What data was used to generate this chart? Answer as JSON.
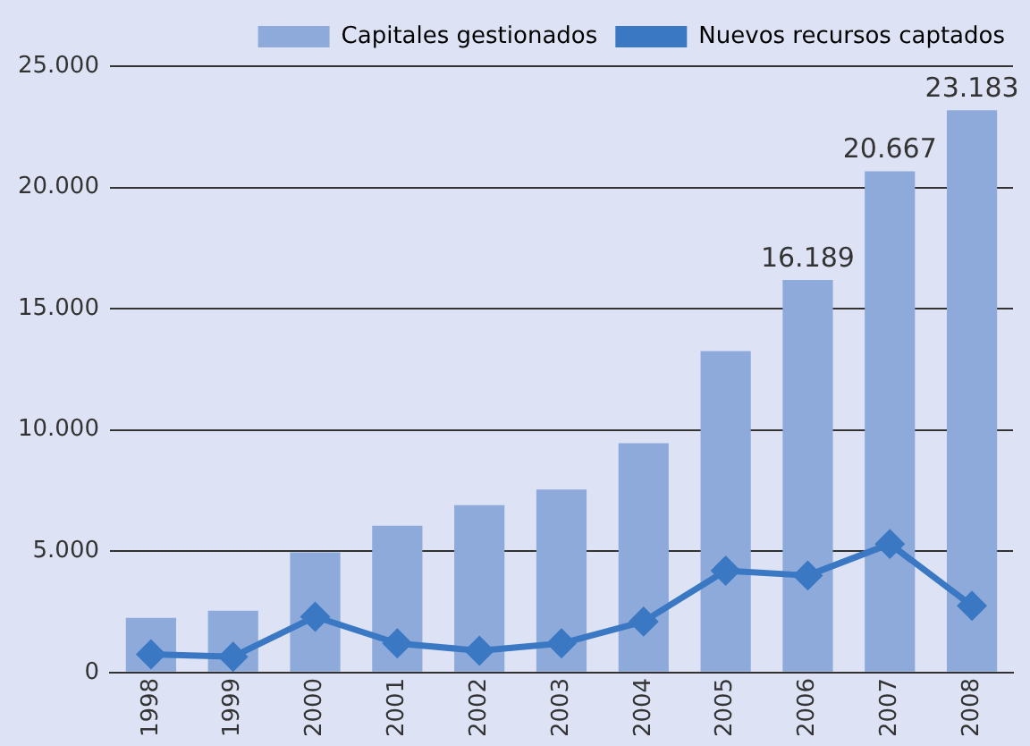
{
  "chart_data": {
    "type": "bar",
    "categories": [
      "1998",
      "1999",
      "2000",
      "2001",
      "2002",
      "2003",
      "2004",
      "2005",
      "2006",
      "2007",
      "2008"
    ],
    "series": [
      {
        "name": "Capitales gestionados",
        "color": "#8eaadb",
        "values": [
          2250,
          2550,
          4950,
          6050,
          6900,
          7550,
          9450,
          13250,
          16189,
          20667,
          23183
        ],
        "value_labels": [
          null,
          null,
          null,
          null,
          null,
          null,
          null,
          null,
          "16.189",
          "20.667",
          "23.183"
        ]
      },
      {
        "name": "Nuevos recursos captados",
        "type": "line",
        "color": "#3b78c3",
        "values": [
          750,
          650,
          2300,
          1200,
          900,
          1200,
          2100,
          4200,
          4000,
          5300,
          2750
        ],
        "marker": "diamond",
        "line_style": "solid"
      }
    ],
    "ylim": [
      0,
      25000
    ],
    "yticks": [
      {
        "value": 0,
        "label": "0"
      },
      {
        "value": 5000,
        "label": "5.000"
      },
      {
        "value": 10000,
        "label": "10.000"
      },
      {
        "value": 15000,
        "label": "15.000"
      },
      {
        "value": 20000,
        "label": "20.000"
      },
      {
        "value": 25000,
        "label": "25.000"
      }
    ],
    "grid": "y",
    "legend": "top right"
  }
}
